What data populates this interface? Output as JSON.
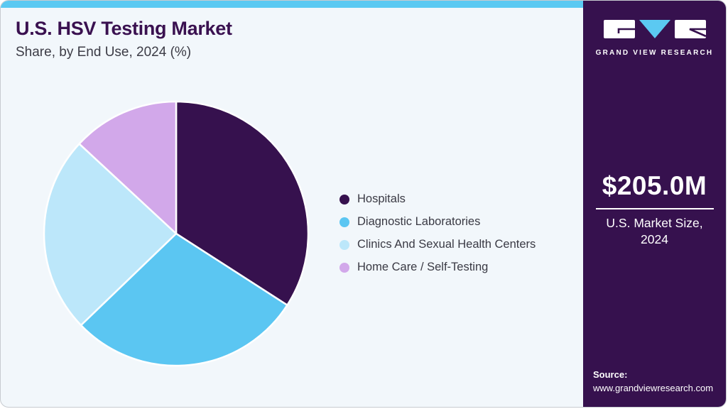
{
  "header": {
    "title": "U.S. HSV Testing Market",
    "subtitle": "Share, by End Use, 2024 (%)"
  },
  "chart_data": {
    "type": "pie",
    "title": "U.S. HSV Testing Market",
    "subtitle": "Share, by End Use, 2024 (%)",
    "categories": [
      "Hospitals",
      "Diagnostic Laboratories",
      "Clinics And Sexual Health Centers",
      "Home Care / Self-Testing"
    ],
    "values_percent": [
      34.1,
      28.7,
      24.1,
      13.1
    ],
    "colors": [
      "#36114E",
      "#5BC6F2",
      "#BCE7FA",
      "#D2A8EA"
    ],
    "start_angle_deg": 0,
    "direction": "clockwise",
    "legend_position": "right",
    "data_labels_shown": false,
    "slice_separator_color": "#FFFFFF"
  },
  "sidebar": {
    "logo_text": "GRAND VIEW RESEARCH",
    "market_size_value": "$205.0M",
    "market_size_caption_line1": "U.S. Market Size,",
    "market_size_caption_line2": "2024",
    "source_label": "Source:",
    "source_url": "www.grandviewresearch.com"
  },
  "colors": {
    "accent_strip": "#5BC9F2",
    "sidebar_bg": "#36114E",
    "card_bg": "#F2F7FB",
    "title_color": "#3A1150",
    "body_text_color": "#3C3C46"
  }
}
